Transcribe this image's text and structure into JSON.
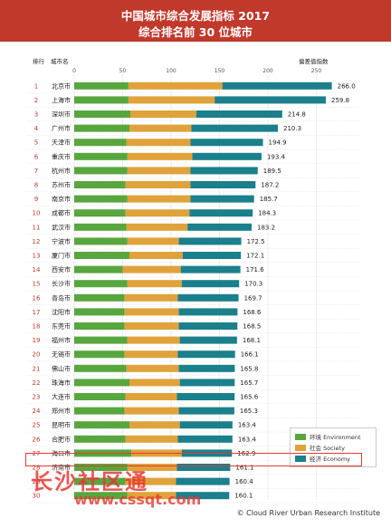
{
  "title_line1": "中国城市综合发展指标 2017",
  "title_line2": "综合排名前 30 位城市",
  "column_rank": "排行",
  "column_city": "城市名",
  "column_score": "偏差值指数",
  "legend": [
    {
      "label": "环境 Environment",
      "color": "#58a63e"
    },
    {
      "label": "社会 Society",
      "color": "#e0a23a"
    },
    {
      "label": "经济 Economy",
      "color": "#1b7f8c"
    }
  ],
  "watermark_text": "长沙社区通",
  "watermark_url": "www.cssqt.com",
  "footer": "© Cloud River Urban Research Institute",
  "chart_data": {
    "type": "bar",
    "stacked": true,
    "orientation": "horizontal",
    "xlim": [
      0,
      266
    ],
    "x_ticks": [
      0,
      50,
      100,
      150,
      200,
      250
    ],
    "categories": [
      "北京市",
      "上海市",
      "深圳市",
      "广州市",
      "天津市",
      "重庆市",
      "杭州市",
      "苏州市",
      "南京市",
      "成都市",
      "武汉市",
      "宁波市",
      "厦门市",
      "西安市",
      "长沙市",
      "青岛市",
      "沈阳市",
      "东莞市",
      "福州市",
      "无锡市",
      "佛山市",
      "珠海市",
      "大连市",
      "郑州市",
      "昆明市",
      "合肥市",
      "海口市",
      "济南市",
      "",
      ""
    ],
    "ranks": [
      "1",
      "2",
      "3",
      "4",
      "5",
      "6",
      "7",
      "8",
      "9",
      "10",
      "11",
      "12",
      "13",
      "14",
      "15",
      "16",
      "17",
      "18",
      "19",
      "20",
      "21",
      "22",
      "23",
      "24",
      "25",
      "26",
      "27",
      "28",
      "29",
      "30"
    ],
    "totals": [
      "266.0",
      "259.8",
      "214.8",
      "210.3",
      "194.9",
      "193.4",
      "189.5",
      "187.2",
      "185.7",
      "184.3",
      "183.2",
      "172.5",
      "172.1",
      "171.6",
      "170.3",
      "169.7",
      "168.6",
      "168.5",
      "168.1",
      "166.1",
      "165.8",
      "165.7",
      "165.6",
      "165.3",
      "163.4",
      "163.4",
      "162.9",
      "161.1",
      "160.4",
      "160.1"
    ],
    "series": [
      {
        "name": "环境 Environment",
        "values": [
          56,
          56,
          58,
          57,
          54,
          55,
          55,
          53,
          55,
          53,
          54,
          55,
          57,
          50,
          55,
          52,
          52,
          52,
          55,
          52,
          54,
          57,
          53,
          52,
          57,
          53,
          59,
          55,
          53,
          55
        ]
      },
      {
        "name": "社会 Society",
        "values": [
          97,
          89,
          68,
          64,
          66,
          67,
          65,
          67,
          65,
          66,
          63,
          53,
          55,
          60,
          56,
          55,
          56,
          56,
          54,
          55,
          54,
          52,
          53,
          56,
          52,
          54,
          52,
          51,
          52,
          50
        ]
      },
      {
        "name": "经济 Economy",
        "values": [
          113,
          114.8,
          88.8,
          89.3,
          74.9,
          71.4,
          69.5,
          67.2,
          65.7,
          65.3,
          66.2,
          64.5,
          60.1,
          61.6,
          59.3,
          62.7,
          60.6,
          60.5,
          59.1,
          59.1,
          57.8,
          56.7,
          59.6,
          57.3,
          54.4,
          56.4,
          51.9,
          55.1,
          55.4,
          55.1
        ]
      }
    ]
  }
}
